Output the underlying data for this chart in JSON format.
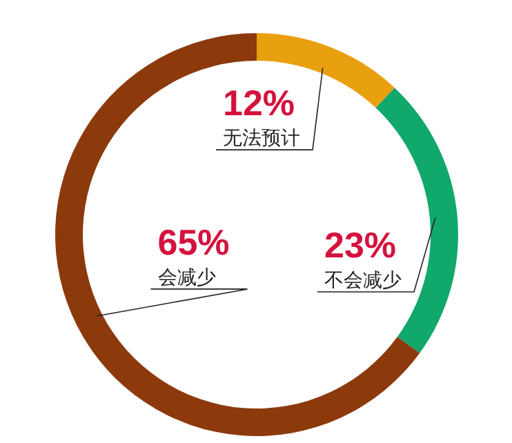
{
  "chart_data": {
    "type": "donut",
    "categories": [
      "无法预计",
      "不会减少",
      "会减少"
    ],
    "values": [
      12,
      23,
      65
    ],
    "colors": [
      "#e9a00f",
      "#11a86b",
      "#8c3a0c"
    ],
    "value_labels": [
      "12%",
      "23%",
      "65%"
    ]
  }
}
